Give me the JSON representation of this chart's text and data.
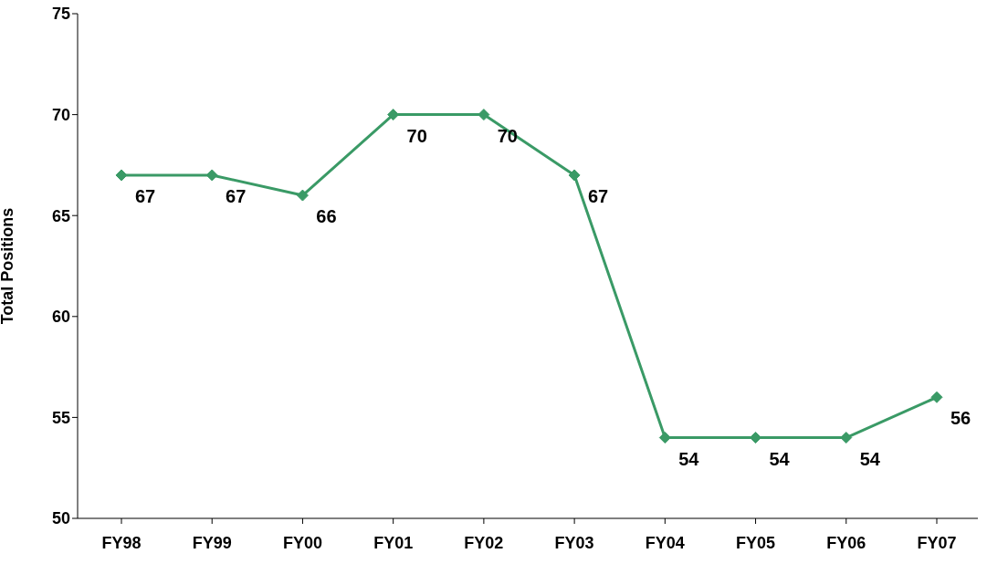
{
  "chart_data": {
    "type": "line",
    "ylabel": "Total Positions",
    "categories": [
      "FY98",
      "FY99",
      "FY00",
      "FY01",
      "FY02",
      "FY03",
      "FY04",
      "FY05",
      "FY06",
      "FY07"
    ],
    "series": [
      {
        "color": "#3a9a66",
        "values": [
          67,
          67,
          66,
          70,
          70,
          67,
          54,
          54,
          54,
          56
        ]
      }
    ],
    "ylim": [
      50,
      75
    ],
    "yticks": [
      50,
      55,
      60,
      65,
      70,
      75
    ],
    "grid": false,
    "legend": false,
    "marker": "diamond",
    "line_style": "solid",
    "data_labels": true
  }
}
